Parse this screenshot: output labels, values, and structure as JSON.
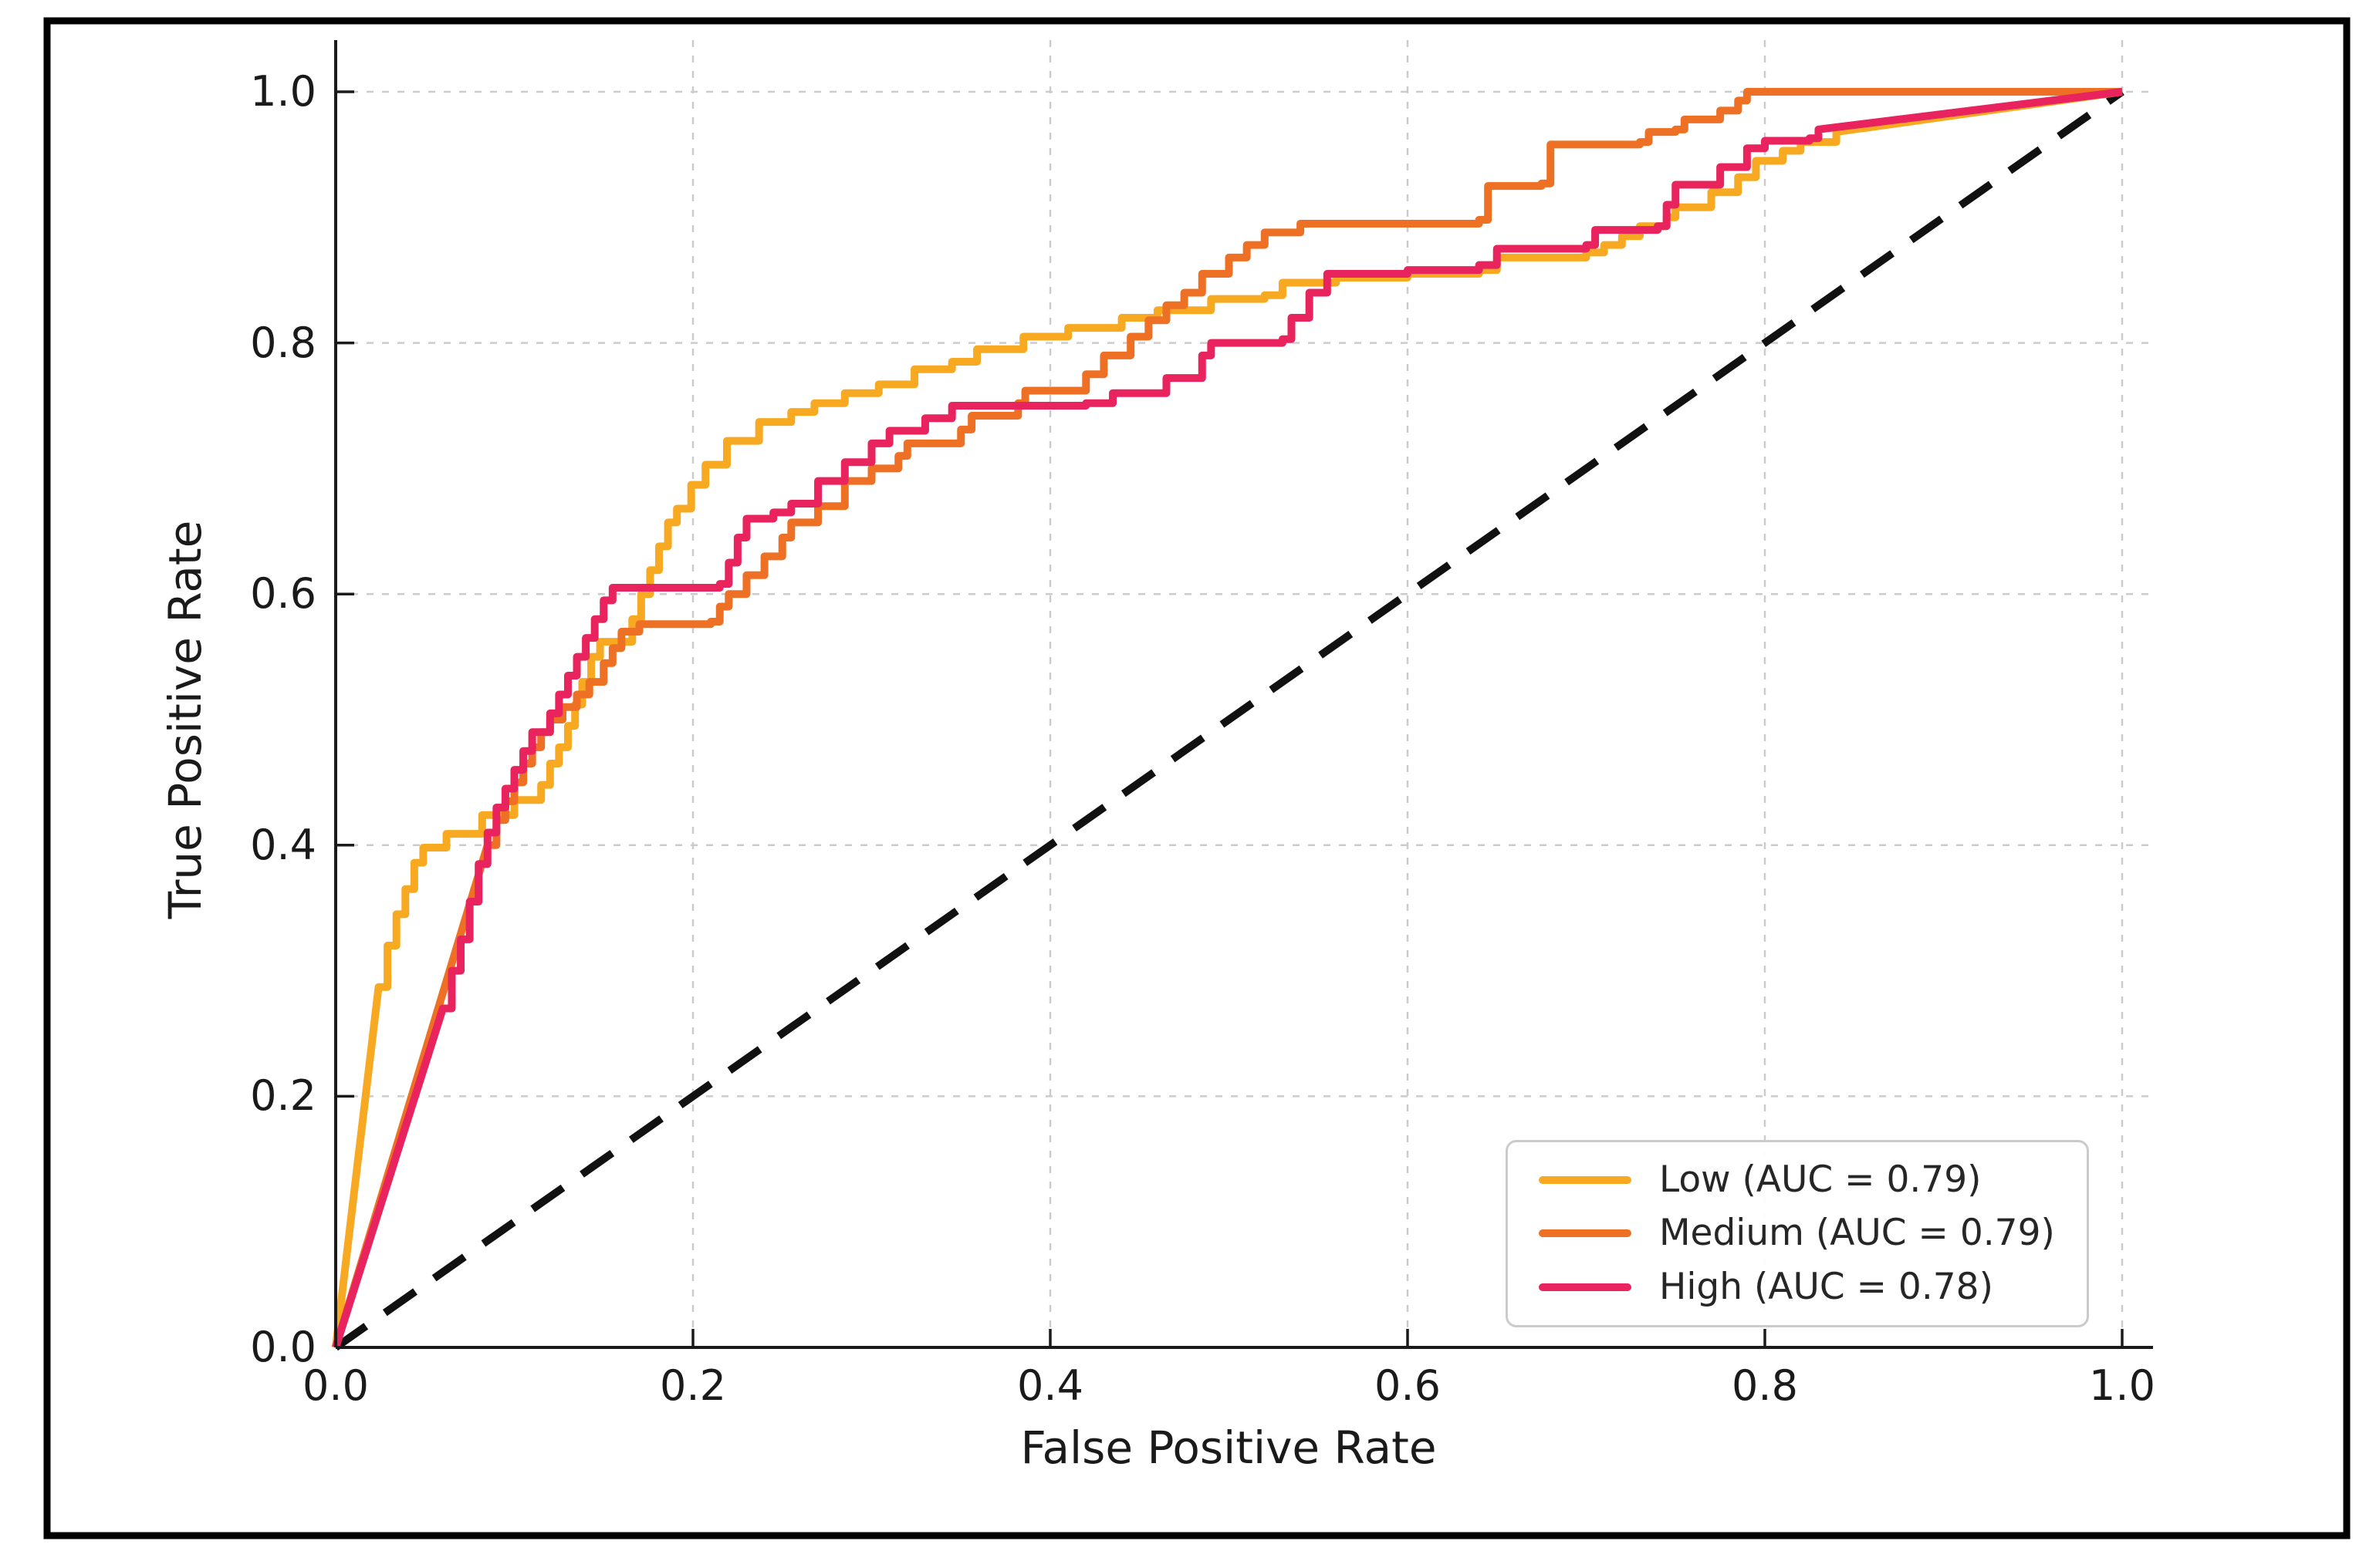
{
  "figure": {
    "background_color": "#ffffff",
    "frame_color": "#000000",
    "text_color": "#1a1a1a",
    "grid_color": "#cccccc",
    "spine_color": "#1a1a1a",
    "diagonal_color": "#111111"
  },
  "chart_data": {
    "type": "line",
    "subtype": "roc-step-curves",
    "title": "",
    "xlabel": "False Positive Rate",
    "ylabel": "True Positive Rate",
    "xlim": [
      0.0,
      1.0
    ],
    "ylim": [
      0.0,
      1.0
    ],
    "x_ticks": [
      "0.0",
      "0.2",
      "0.4",
      "0.6",
      "0.8",
      "1.0"
    ],
    "y_ticks": [
      "0.0",
      "0.2",
      "0.4",
      "0.6",
      "0.8",
      "1.0"
    ],
    "x_tick_values": [
      0.0,
      0.2,
      0.4,
      0.6,
      0.8,
      1.0
    ],
    "y_tick_values": [
      0.0,
      0.2,
      0.4,
      0.6,
      0.8,
      1.0
    ],
    "grid": true,
    "grid_style": "dashed",
    "legend_position": "lower right",
    "reference_line": {
      "name": "chance-diagonal",
      "style": "dashed",
      "color": "#111111",
      "points": [
        [
          0,
          0
        ],
        [
          1,
          1
        ]
      ]
    },
    "series": [
      {
        "name": "Low",
        "auc": 0.79,
        "label": "Low (AUC = 0.79)",
        "color": "#F7A922",
        "tail_straight": true,
        "points": [
          [
            0,
            0
          ],
          [
            0.024,
            0.287
          ],
          [
            0.029,
            0.32
          ],
          [
            0.034,
            0.345
          ],
          [
            0.039,
            0.365
          ],
          [
            0.044,
            0.386
          ],
          [
            0.049,
            0.398
          ],
          [
            0.062,
            0.409
          ],
          [
            0.082,
            0.424
          ],
          [
            0.1,
            0.436
          ],
          [
            0.115,
            0.448
          ],
          [
            0.12,
            0.465
          ],
          [
            0.125,
            0.478
          ],
          [
            0.13,
            0.495
          ],
          [
            0.134,
            0.512
          ],
          [
            0.138,
            0.53
          ],
          [
            0.143,
            0.55
          ],
          [
            0.148,
            0.562
          ],
          [
            0.166,
            0.58
          ],
          [
            0.171,
            0.6
          ],
          [
            0.176,
            0.619
          ],
          [
            0.181,
            0.638
          ],
          [
            0.186,
            0.657
          ],
          [
            0.191,
            0.668
          ],
          [
            0.199,
            0.687
          ],
          [
            0.207,
            0.703
          ],
          [
            0.219,
            0.722
          ],
          [
            0.237,
            0.737
          ],
          [
            0.255,
            0.745
          ],
          [
            0.268,
            0.752
          ],
          [
            0.285,
            0.76
          ],
          [
            0.304,
            0.767
          ],
          [
            0.324,
            0.779
          ],
          [
            0.345,
            0.785
          ],
          [
            0.359,
            0.795
          ],
          [
            0.385,
            0.805
          ],
          [
            0.41,
            0.812
          ],
          [
            0.44,
            0.82
          ],
          [
            0.46,
            0.826
          ],
          [
            0.49,
            0.835
          ],
          [
            0.52,
            0.838
          ],
          [
            0.53,
            0.848
          ],
          [
            0.56,
            0.852
          ],
          [
            0.6,
            0.855
          ],
          [
            0.64,
            0.858
          ],
          [
            0.65,
            0.868
          ],
          [
            0.7,
            0.872
          ],
          [
            0.71,
            0.878
          ],
          [
            0.72,
            0.885
          ],
          [
            0.73,
            0.893
          ],
          [
            0.745,
            0.9
          ],
          [
            0.75,
            0.908
          ],
          [
            0.77,
            0.92
          ],
          [
            0.785,
            0.932
          ],
          [
            0.795,
            0.945
          ],
          [
            0.81,
            0.953
          ],
          [
            0.82,
            0.96
          ],
          [
            0.84,
            0.968
          ],
          [
            1,
            1
          ]
        ]
      },
      {
        "name": "Medium",
        "auc": 0.79,
        "label": "Medium (AUC = 0.79)",
        "color": "#EE7024",
        "tail_straight": false,
        "points": [
          [
            0,
            0
          ],
          [
            0.085,
            0.4
          ],
          [
            0.09,
            0.42
          ],
          [
            0.095,
            0.435
          ],
          [
            0.1,
            0.45
          ],
          [
            0.105,
            0.465
          ],
          [
            0.11,
            0.478
          ],
          [
            0.115,
            0.49
          ],
          [
            0.12,
            0.5
          ],
          [
            0.127,
            0.51
          ],
          [
            0.135,
            0.52
          ],
          [
            0.142,
            0.53
          ],
          [
            0.15,
            0.545
          ],
          [
            0.155,
            0.557
          ],
          [
            0.16,
            0.57
          ],
          [
            0.17,
            0.576
          ],
          [
            0.21,
            0.578
          ],
          [
            0.215,
            0.59
          ],
          [
            0.22,
            0.6
          ],
          [
            0.23,
            0.615
          ],
          [
            0.24,
            0.63
          ],
          [
            0.25,
            0.645
          ],
          [
            0.255,
            0.657
          ],
          [
            0.27,
            0.67
          ],
          [
            0.285,
            0.69
          ],
          [
            0.3,
            0.7
          ],
          [
            0.315,
            0.71
          ],
          [
            0.32,
            0.72
          ],
          [
            0.35,
            0.731
          ],
          [
            0.356,
            0.742
          ],
          [
            0.382,
            0.752
          ],
          [
            0.386,
            0.762
          ],
          [
            0.42,
            0.775
          ],
          [
            0.43,
            0.79
          ],
          [
            0.445,
            0.805
          ],
          [
            0.455,
            0.818
          ],
          [
            0.465,
            0.83
          ],
          [
            0.475,
            0.84
          ],
          [
            0.485,
            0.855
          ],
          [
            0.5,
            0.868
          ],
          [
            0.51,
            0.878
          ],
          [
            0.52,
            0.888
          ],
          [
            0.54,
            0.895
          ],
          [
            0.64,
            0.898
          ],
          [
            0.645,
            0.925
          ],
          [
            0.675,
            0.927
          ],
          [
            0.68,
            0.958
          ],
          [
            0.73,
            0.96
          ],
          [
            0.735,
            0.968
          ],
          [
            0.75,
            0.97
          ],
          [
            0.755,
            0.978
          ],
          [
            0.775,
            0.985
          ],
          [
            0.785,
            0.993
          ],
          [
            0.79,
            1
          ],
          [
            1,
            1
          ]
        ]
      },
      {
        "name": "High",
        "auc": 0.78,
        "label": "High (AUC = 0.78)",
        "color": "#E8235D",
        "tail_straight": true,
        "points": [
          [
            0,
            0
          ],
          [
            0.06,
            0.27
          ],
          [
            0.065,
            0.3
          ],
          [
            0.07,
            0.325
          ],
          [
            0.075,
            0.355
          ],
          [
            0.08,
            0.385
          ],
          [
            0.085,
            0.41
          ],
          [
            0.09,
            0.43
          ],
          [
            0.095,
            0.445
          ],
          [
            0.1,
            0.46
          ],
          [
            0.105,
            0.475
          ],
          [
            0.11,
            0.49
          ],
          [
            0.12,
            0.505
          ],
          [
            0.125,
            0.52
          ],
          [
            0.13,
            0.535
          ],
          [
            0.135,
            0.55
          ],
          [
            0.14,
            0.565
          ],
          [
            0.145,
            0.58
          ],
          [
            0.15,
            0.595
          ],
          [
            0.155,
            0.605
          ],
          [
            0.215,
            0.608
          ],
          [
            0.22,
            0.625
          ],
          [
            0.225,
            0.645
          ],
          [
            0.23,
            0.66
          ],
          [
            0.245,
            0.665
          ],
          [
            0.255,
            0.672
          ],
          [
            0.27,
            0.69
          ],
          [
            0.285,
            0.705
          ],
          [
            0.3,
            0.72
          ],
          [
            0.31,
            0.73
          ],
          [
            0.33,
            0.74
          ],
          [
            0.345,
            0.75
          ],
          [
            0.42,
            0.752
          ],
          [
            0.435,
            0.76
          ],
          [
            0.465,
            0.772
          ],
          [
            0.485,
            0.79
          ],
          [
            0.49,
            0.8
          ],
          [
            0.53,
            0.803
          ],
          [
            0.535,
            0.82
          ],
          [
            0.545,
            0.84
          ],
          [
            0.555,
            0.855
          ],
          [
            0.6,
            0.858
          ],
          [
            0.64,
            0.862
          ],
          [
            0.65,
            0.875
          ],
          [
            0.7,
            0.878
          ],
          [
            0.705,
            0.89
          ],
          [
            0.74,
            0.893
          ],
          [
            0.745,
            0.91
          ],
          [
            0.75,
            0.926
          ],
          [
            0.775,
            0.94
          ],
          [
            0.79,
            0.955
          ],
          [
            0.8,
            0.961
          ],
          [
            0.825,
            0.963
          ],
          [
            0.83,
            0.97
          ],
          [
            1,
            1
          ]
        ]
      }
    ]
  }
}
